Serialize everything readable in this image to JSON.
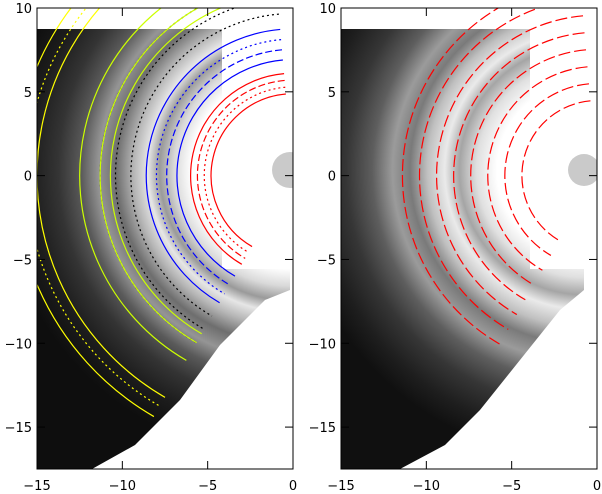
{
  "chart_data": [
    {
      "type": "image",
      "panel": "left",
      "x_range": [
        -15,
        0
      ],
      "y_range": [
        -17.5,
        10
      ],
      "x_ticks": [
        -15,
        -10,
        -5,
        0
      ],
      "y_ticks": [
        10,
        5,
        0,
        -5,
        -10,
        -15
      ],
      "x_tick_labels": [
        "−15",
        "−10",
        "−5",
        "0"
      ],
      "y_tick_labels": [
        "10",
        "5",
        "0",
        "−5",
        "−10",
        "−15"
      ],
      "arc_center": [
        0,
        0
      ],
      "contours": [
        {
          "color": "#ff0000",
          "radii": [
            4.8,
            5.2,
            5.6,
            6.0
          ],
          "dash": [
            "",
            "2 3",
            "7 3",
            ""
          ]
        },
        {
          "color": "#0000ff",
          "radii": [
            6.8,
            7.4,
            8.0,
            8.6
          ],
          "dash": [
            "",
            "7 3",
            "2 3",
            ""
          ]
        },
        {
          "color": "#000000",
          "radii": [
            9.5,
            10.4,
            11.3
          ],
          "dash": [
            "2 3",
            "2 3",
            "2 3"
          ]
        },
        {
          "color": "#ccff00",
          "radii": [
            10.7,
            11.3,
            12.5
          ],
          "dash": [
            "",
            "",
            ""
          ]
        },
        {
          "color": "#ffff00",
          "radii": [
            15.0,
            15.6,
            16.3
          ],
          "dash": [
            "",
            "2 3",
            ""
          ]
        }
      ]
    },
    {
      "type": "image",
      "panel": "right",
      "x_range": [
        -15,
        0
      ],
      "y_range": [
        -17.5,
        10
      ],
      "x_ticks": [
        -15,
        -10,
        -5,
        0
      ],
      "y_ticks": [
        10,
        5,
        0,
        -5,
        -10,
        -15
      ],
      "x_tick_labels": [
        "−15",
        "−10",
        "−5",
        "0"
      ],
      "y_tick_labels": [
        "10",
        "5",
        "0",
        "−5",
        "−10",
        "−15"
      ],
      "arc_center": [
        0,
        0
      ],
      "contours": [
        {
          "color": "#ff0000",
          "radii": [
            4.4,
            5.4,
            6.4,
            7.4,
            8.4,
            9.4,
            10.4,
            11.4
          ],
          "dash": [
            "12 4",
            "12 4",
            "12 4",
            "12 4",
            "12 4",
            "12 4",
            "12 4",
            "12 4"
          ]
        }
      ]
    }
  ]
}
